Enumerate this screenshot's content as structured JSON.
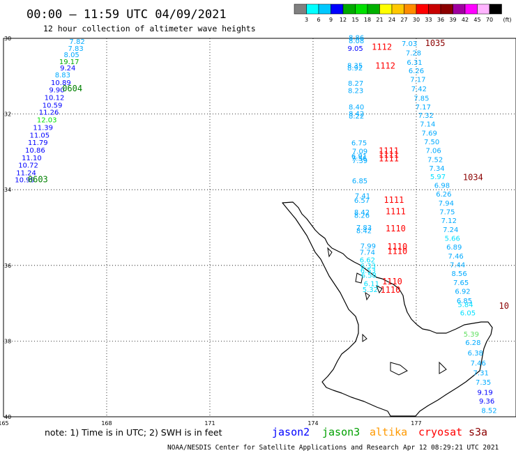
{
  "header": {
    "title": "00:00 – 11:59 UTC 04/09/2021",
    "subtitle": "12 hour collection of altimeter wave heights"
  },
  "legend": {
    "colors": [
      "#808080",
      "#00ffff",
      "#00c8ff",
      "#0000ff",
      "#00aa00",
      "#00e000",
      "#00b000",
      "#ffff00",
      "#ffc800",
      "#ff8c00",
      "#ff0000",
      "#c80000",
      "#8b0000",
      "#a000a0",
      "#ff00ff",
      "#ffb4ff",
      "#000000"
    ],
    "labels": [
      "3",
      "6",
      "9",
      "12",
      "15",
      "18",
      "21",
      "24",
      "27",
      "30",
      "33",
      "36",
      "39",
      "42",
      "45",
      "70",
      "(ft)"
    ]
  },
  "axes": {
    "lat_labels": [
      "30",
      "32",
      "34",
      "36",
      "38",
      "40"
    ],
    "lon_labels": [
      "165",
      "168",
      "171",
      "174",
      "177"
    ]
  },
  "observations": [
    {
      "v": "7.82",
      "lon": 167.14,
      "lat": -30.15,
      "c": "#00aaff"
    },
    {
      "v": "7.83",
      "lon": 167.1,
      "lat": -30.33,
      "c": "#00aaff"
    },
    {
      "v": "8.05",
      "lon": 166.98,
      "lat": -30.5,
      "c": "#00aaff"
    },
    {
      "v": "19.17",
      "lon": 166.91,
      "lat": -30.68,
      "c": "#00aa00"
    },
    {
      "v": "9.24",
      "lon": 166.87,
      "lat": -30.85,
      "c": "#0000ff"
    },
    {
      "v": "8.83",
      "lon": 166.72,
      "lat": -31.03,
      "c": "#00aaff"
    },
    {
      "v": "10.89",
      "lon": 166.67,
      "lat": -31.23,
      "c": "#0000ff"
    },
    {
      "v": "9.90",
      "lon": 166.55,
      "lat": -31.43,
      "c": "#0000ff"
    },
    {
      "v": "10.12",
      "lon": 166.48,
      "lat": -31.63,
      "c": "#0000ff"
    },
    {
      "v": "10.59",
      "lon": 166.42,
      "lat": -31.83,
      "c": "#0000ff"
    },
    {
      "v": "11.26",
      "lon": 166.32,
      "lat": -32.02,
      "c": "#0000ff"
    },
    {
      "v": "12.03",
      "lon": 166.26,
      "lat": -32.22,
      "c": "#00e000"
    },
    {
      "v": "11.39",
      "lon": 166.15,
      "lat": -32.42,
      "c": "#0000ff"
    },
    {
      "v": "11.05",
      "lon": 166.05,
      "lat": -32.62,
      "c": "#0000ff"
    },
    {
      "v": "11.79",
      "lon": 166.0,
      "lat": -32.82,
      "c": "#0000ff"
    },
    {
      "v": "10.86",
      "lon": 165.92,
      "lat": -33.02,
      "c": "#0000ff"
    },
    {
      "v": "11.10",
      "lon": 165.82,
      "lat": -33.22,
      "c": "#0000ff"
    },
    {
      "v": "10.72",
      "lon": 165.72,
      "lat": -33.42,
      "c": "#0000ff"
    },
    {
      "v": "11.24",
      "lon": 165.66,
      "lat": -33.62,
      "c": "#0000ff"
    },
    {
      "v": "10.99",
      "lon": 165.62,
      "lat": -33.8,
      "c": "#0000ff"
    },
    {
      "v": "8.86",
      "lon": 175.26,
      "lat": -30.05,
      "c": "#00aaff"
    },
    {
      "v": "8.08",
      "lon": 175.26,
      "lat": -30.13,
      "c": "#00aaff"
    },
    {
      "v": "9.05",
      "lon": 175.23,
      "lat": -30.33,
      "c": "#0000ff"
    },
    {
      "v": "8.35",
      "lon": 175.22,
      "lat": -30.78,
      "c": "#00aaff"
    },
    {
      "v": "8.92",
      "lon": 175.22,
      "lat": -30.85,
      "c": "#00aaff"
    },
    {
      "v": "8.27",
      "lon": 175.24,
      "lat": -31.25,
      "c": "#00aaff"
    },
    {
      "v": "8.23",
      "lon": 175.24,
      "lat": -31.45,
      "c": "#00aaff"
    },
    {
      "v": "8.40",
      "lon": 175.26,
      "lat": -31.88,
      "c": "#00aaff"
    },
    {
      "v": "8.42",
      "lon": 175.26,
      "lat": -32.05,
      "c": "#00aaff"
    },
    {
      "v": "8.22",
      "lon": 175.26,
      "lat": -32.12,
      "c": "#00aaff"
    },
    {
      "v": "6.75",
      "lon": 175.34,
      "lat": -32.83,
      "c": "#00aaff"
    },
    {
      "v": "7.09",
      "lon": 175.36,
      "lat": -33.05,
      "c": "#00aaff"
    },
    {
      "v": "6.91",
      "lon": 175.34,
      "lat": -33.18,
      "c": "#00aaff"
    },
    {
      "v": "7.56",
      "lon": 175.34,
      "lat": -33.23,
      "c": "#00aaff"
    },
    {
      "v": "7.39",
      "lon": 175.36,
      "lat": -33.3,
      "c": "#00aaff"
    },
    {
      "v": "6.85",
      "lon": 175.36,
      "lat": -33.83,
      "c": "#00aaff"
    },
    {
      "v": "7.41",
      "lon": 175.44,
      "lat": -34.23,
      "c": "#00aaff"
    },
    {
      "v": "6.57",
      "lon": 175.42,
      "lat": -34.35,
      "c": "#00aaff"
    },
    {
      "v": "8.42",
      "lon": 175.42,
      "lat": -34.66,
      "c": "#00aaff"
    },
    {
      "v": "8.26",
      "lon": 175.42,
      "lat": -34.74,
      "c": "#00aaff"
    },
    {
      "v": "7.83",
      "lon": 175.48,
      "lat": -35.06,
      "c": "#00aaff"
    },
    {
      "v": "8.42",
      "lon": 175.48,
      "lat": -35.15,
      "c": "#00aaff"
    },
    {
      "v": "7.99",
      "lon": 175.6,
      "lat": -35.55,
      "c": "#00aaff"
    },
    {
      "v": "7.74",
      "lon": 175.58,
      "lat": -35.72,
      "c": "#00aaff"
    },
    {
      "v": "6.62",
      "lon": 175.58,
      "lat": -35.92,
      "c": "#00e0ff"
    },
    {
      "v": "6.33",
      "lon": 175.6,
      "lat": -36.08,
      "c": "#00e0ff"
    },
    {
      "v": "6.53",
      "lon": 175.6,
      "lat": -36.2,
      "c": "#00e0ff"
    },
    {
      "v": "6.58",
      "lon": 175.62,
      "lat": -36.33,
      "c": "#00e0ff"
    },
    {
      "v": "6.11",
      "lon": 175.7,
      "lat": -36.55,
      "c": "#00e0ff"
    },
    {
      "v": "5.32",
      "lon": 175.66,
      "lat": -36.7,
      "c": "#00e0ff"
    },
    {
      "v": "7.03",
      "lon": 176.8,
      "lat": -30.2,
      "c": "#00aaff"
    },
    {
      "v": "7.28",
      "lon": 176.92,
      "lat": -30.45,
      "c": "#00aaff"
    },
    {
      "v": "6.31",
      "lon": 176.95,
      "lat": -30.7,
      "c": "#00aaff"
    },
    {
      "v": "6.26",
      "lon": 177.0,
      "lat": -30.92,
      "c": "#00aaff"
    },
    {
      "v": "7.17",
      "lon": 177.05,
      "lat": -31.15,
      "c": "#00aaff"
    },
    {
      "v": "7.42",
      "lon": 177.08,
      "lat": -31.4,
      "c": "#00aaff"
    },
    {
      "v": "7.85",
      "lon": 177.15,
      "lat": -31.65,
      "c": "#00aaff"
    },
    {
      "v": "7.17",
      "lon": 177.2,
      "lat": -31.88,
      "c": "#00aaff"
    },
    {
      "v": "7.32",
      "lon": 177.28,
      "lat": -32.1,
      "c": "#00aaff"
    },
    {
      "v": "7.14",
      "lon": 177.33,
      "lat": -32.33,
      "c": "#00aaff"
    },
    {
      "v": "7.69",
      "lon": 177.38,
      "lat": -32.57,
      "c": "#00aaff"
    },
    {
      "v": "7.50",
      "lon": 177.45,
      "lat": -32.8,
      "c": "#00aaff"
    },
    {
      "v": "7.06",
      "lon": 177.5,
      "lat": -33.03,
      "c": "#00aaff"
    },
    {
      "v": "7.52",
      "lon": 177.55,
      "lat": -33.27,
      "c": "#00aaff"
    },
    {
      "v": "7.34",
      "lon": 177.6,
      "lat": -33.5,
      "c": "#00aaff"
    },
    {
      "v": "5.97",
      "lon": 177.63,
      "lat": -33.72,
      "c": "#00e0ff"
    },
    {
      "v": "6.98",
      "lon": 177.75,
      "lat": -33.95,
      "c": "#00aaff"
    },
    {
      "v": "6.26",
      "lon": 177.8,
      "lat": -34.18,
      "c": "#00aaff"
    },
    {
      "v": "7.94",
      "lon": 177.87,
      "lat": -34.42,
      "c": "#00aaff"
    },
    {
      "v": "7.75",
      "lon": 177.9,
      "lat": -34.65,
      "c": "#00aaff"
    },
    {
      "v": "7.12",
      "lon": 177.95,
      "lat": -34.88,
      "c": "#00aaff"
    },
    {
      "v": "7.24",
      "lon": 178.0,
      "lat": -35.12,
      "c": "#00aaff"
    },
    {
      "v": "5.66",
      "lon": 178.05,
      "lat": -35.35,
      "c": "#00e0ff"
    },
    {
      "v": "6.89",
      "lon": 178.1,
      "lat": -35.58,
      "c": "#00aaff"
    },
    {
      "v": "7.46",
      "lon": 178.15,
      "lat": -35.82,
      "c": "#00aaff"
    },
    {
      "v": "7.44",
      "lon": 178.2,
      "lat": -36.05,
      "c": "#00aaff"
    },
    {
      "v": "8.56",
      "lon": 178.25,
      "lat": -36.28,
      "c": "#00aaff"
    },
    {
      "v": "7.65",
      "lon": 178.3,
      "lat": -36.52,
      "c": "#00aaff"
    },
    {
      "v": "6.92",
      "lon": 178.35,
      "lat": -36.75,
      "c": "#00aaff"
    },
    {
      "v": "6.85",
      "lon": 178.4,
      "lat": -37.0,
      "c": "#00aaff"
    },
    {
      "v": "5.84",
      "lon": 178.43,
      "lat": -37.1,
      "c": "#00e0ff"
    },
    {
      "v": "6.05",
      "lon": 178.5,
      "lat": -37.32,
      "c": "#00e0ff"
    },
    {
      "v": "5.39",
      "lon": 178.6,
      "lat": -37.88,
      "c": "#60e060"
    },
    {
      "v": "6.28",
      "lon": 178.65,
      "lat": -38.1,
      "c": "#00aaff"
    },
    {
      "v": "6.38",
      "lon": 178.72,
      "lat": -38.38,
      "c": "#00aaff"
    },
    {
      "v": "7.46",
      "lon": 178.8,
      "lat": -38.65,
      "c": "#00aaff"
    },
    {
      "v": "7.31",
      "lon": 178.88,
      "lat": -38.9,
      "c": "#00aaff"
    },
    {
      "v": "7.35",
      "lon": 178.95,
      "lat": -39.15,
      "c": "#00aaff"
    },
    {
      "v": "9.19",
      "lon": 179.0,
      "lat": -39.42,
      "c": "#0000ff"
    },
    {
      "v": "9.36",
      "lon": 179.05,
      "lat": -39.65,
      "c": "#0000ff"
    },
    {
      "v": "8.52",
      "lon": 179.12,
      "lat": -39.9,
      "c": "#00aaff"
    }
  ],
  "time_labels": [
    {
      "t": "0604",
      "lon": 167.0,
      "lat": -31.4,
      "c": "#008000"
    },
    {
      "t": "0603",
      "lon": 166.0,
      "lat": -33.8,
      "c": "#008000"
    },
    {
      "t": "1112",
      "lon": 176.0,
      "lat": -30.3,
      "c": "#ff0000"
    },
    {
      "t": "1112",
      "lon": 176.1,
      "lat": -30.8,
      "c": "#ff0000"
    },
    {
      "t": "1035",
      "lon": 177.55,
      "lat": -30.2,
      "c": "#8b0000"
    },
    {
      "t": "1111",
      "lon": 176.2,
      "lat": -33.05,
      "c": "#ff0000"
    },
    {
      "t": "1111",
      "lon": 176.2,
      "lat": -33.15,
      "c": "#ff0000"
    },
    {
      "t": "1111",
      "lon": 176.2,
      "lat": -33.25,
      "c": "#ff0000"
    },
    {
      "t": "1034",
      "lon": 178.65,
      "lat": -33.75,
      "c": "#8b0000"
    },
    {
      "t": "1111",
      "lon": 176.35,
      "lat": -34.35,
      "c": "#ff0000"
    },
    {
      "t": "1111",
      "lon": 176.4,
      "lat": -34.65,
      "c": "#ff0000"
    },
    {
      "t": "1110",
      "lon": 176.4,
      "lat": -35.1,
      "c": "#ff0000"
    },
    {
      "t": "1110",
      "lon": 176.45,
      "lat": -35.58,
      "c": "#ff0000"
    },
    {
      "t": "1110",
      "lon": 176.45,
      "lat": -35.7,
      "c": "#ff0000"
    },
    {
      "t": "1110",
      "lon": 176.3,
      "lat": -36.5,
      "c": "#ff0000"
    },
    {
      "t": "1110",
      "lon": 176.25,
      "lat": -36.72,
      "c": "#ff0000"
    },
    {
      "t": "10",
      "lon": 179.55,
      "lat": -37.15,
      "c": "#8b0000"
    }
  ],
  "footer": {
    "note": "note: 1) Time is in UTC; 2) SWH is in feet",
    "satellites": [
      {
        "name": "jason2",
        "c": "#0000ff"
      },
      {
        "name": "jason3",
        "c": "#00a000"
      },
      {
        "name": "altika",
        "c": "#ff9900"
      },
      {
        "name": "cryosat",
        "c": "#ff0000"
      },
      {
        "name": "s3a",
        "c": "#8b0000"
      }
    ],
    "credit": "NOAA/NESDIS Center for Satellite Applications and Research",
    "timestamp": "Apr 12 08:29:21 UTC 2021"
  }
}
